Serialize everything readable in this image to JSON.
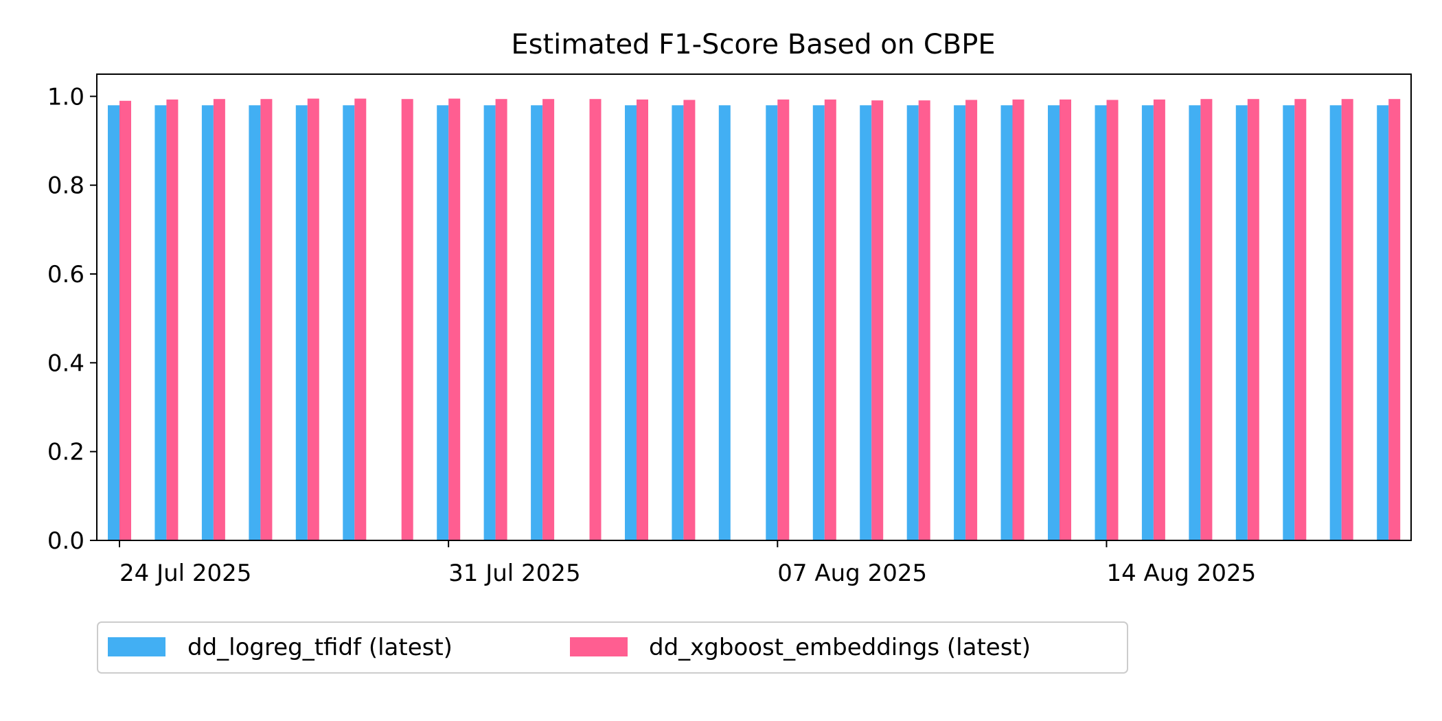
{
  "chart_data": {
    "type": "bar",
    "title": "Estimated F1-Score Based on CBPE",
    "xlabel": "",
    "ylabel": "",
    "ylim": [
      0.0,
      1.05
    ],
    "y_ticks": [
      "0.0",
      "0.2",
      "0.4",
      "0.6",
      "0.8",
      "1.0"
    ],
    "x_tick_labels": [
      "24 Jul 2025",
      "31 Jul 2025",
      "07 Aug 2025",
      "14 Aug 2025"
    ],
    "grid": false,
    "legend_position": "bottom-left, below axes",
    "categories": [
      "2025-07-24",
      "2025-07-25",
      "2025-07-26",
      "2025-07-27",
      "2025-07-28",
      "2025-07-29",
      "2025-07-30",
      "2025-07-31",
      "2025-08-01",
      "2025-08-02",
      "2025-08-03",
      "2025-08-04",
      "2025-08-05",
      "2025-08-06",
      "2025-08-07",
      "2025-08-08",
      "2025-08-09",
      "2025-08-10",
      "2025-08-11",
      "2025-08-12",
      "2025-08-13",
      "2025-08-14",
      "2025-08-15",
      "2025-08-16",
      "2025-08-17",
      "2025-08-18",
      "2025-08-19",
      "2025-08-20"
    ],
    "series": [
      {
        "name": "dd_logreg_tfidf (latest)",
        "color": "#42aff3",
        "values": [
          0.98,
          0.98,
          0.98,
          0.98,
          0.98,
          0.98,
          null,
          0.98,
          0.98,
          0.98,
          null,
          0.98,
          0.98,
          0.98,
          0.98,
          0.98,
          0.98,
          0.98,
          0.98,
          0.98,
          0.98,
          0.98,
          0.98,
          0.98,
          0.98,
          0.98,
          0.98,
          0.98
        ]
      },
      {
        "name": "dd_xgboost_embeddings (latest)",
        "color": "#ff5e91",
        "values": [
          0.99,
          0.993,
          0.994,
          0.994,
          0.995,
          0.995,
          0.994,
          0.995,
          0.994,
          0.994,
          0.994,
          0.993,
          0.992,
          null,
          0.993,
          0.993,
          0.991,
          0.991,
          0.992,
          0.993,
          0.993,
          0.992,
          0.993,
          0.994,
          0.994,
          0.994,
          0.994,
          0.994
        ]
      }
    ]
  }
}
